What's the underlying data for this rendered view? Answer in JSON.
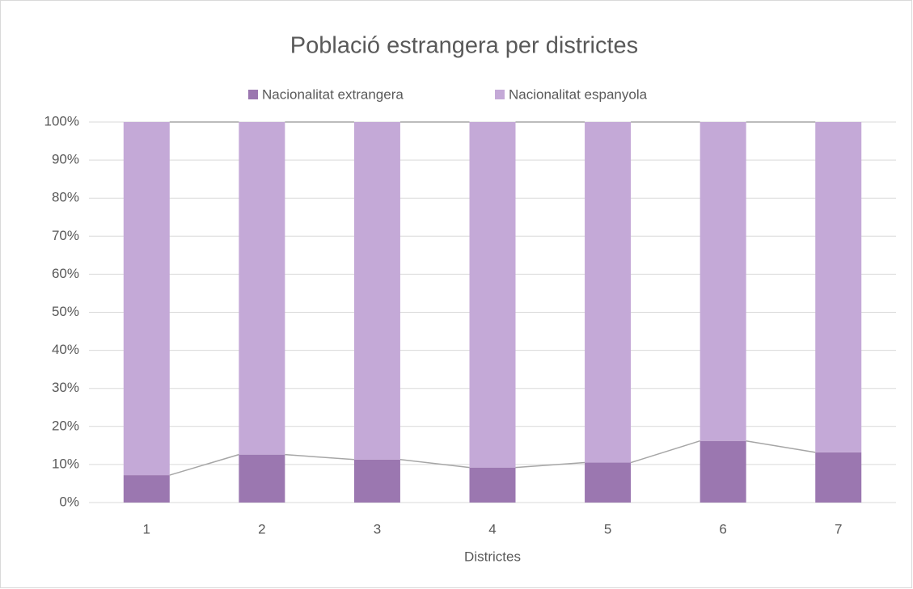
{
  "chart_data": {
    "type": "stacked_bar_100",
    "title": "Població estrangera per districtes",
    "x_label": "Districtes",
    "categories": [
      "1",
      "2",
      "3",
      "4",
      "5",
      "6",
      "7"
    ],
    "series": [
      {
        "name": "Nacionalitat extrangera",
        "color": "#9b77b0",
        "values": [
          7.2,
          12.6,
          11.3,
          9.2,
          10.5,
          16.2,
          13.2
        ]
      },
      {
        "name": "Nacionalitat espanyola",
        "color": "#c4a9d7",
        "values": [
          92.8,
          87.4,
          88.7,
          90.8,
          89.5,
          83.8,
          86.8
        ]
      }
    ],
    "ylim": [
      0,
      100
    ],
    "yticks": [
      {
        "value": 0,
        "label": "0%"
      },
      {
        "value": 10,
        "label": "10%"
      },
      {
        "value": 20,
        "label": "20%"
      },
      {
        "value": 30,
        "label": "30%"
      },
      {
        "value": 40,
        "label": "40%"
      },
      {
        "value": 50,
        "label": "50%"
      },
      {
        "value": 60,
        "label": "60%"
      },
      {
        "value": 70,
        "label": "70%"
      },
      {
        "value": 80,
        "label": "80%"
      },
      {
        "value": 90,
        "label": "90%"
      },
      {
        "value": 100,
        "label": "100%"
      }
    ],
    "grid": true,
    "legend": "top",
    "series_lines": true
  }
}
